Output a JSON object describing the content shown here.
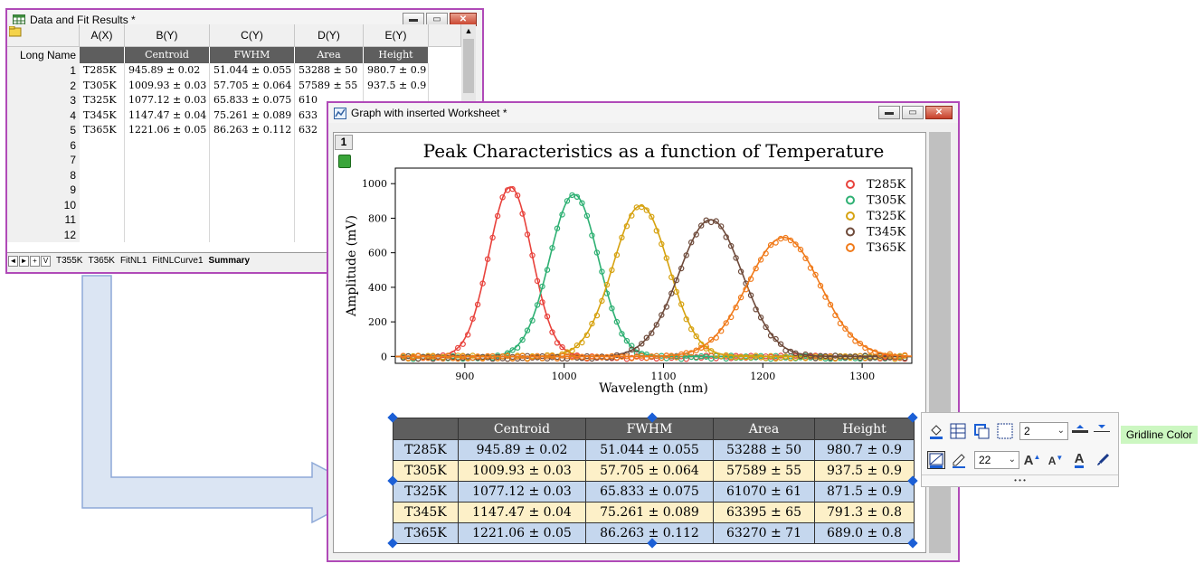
{
  "worksheet": {
    "title": "Data and Fit Results *",
    "columns": [
      "A(X)",
      "B(Y)",
      "C(Y)",
      "D(Y)",
      "E(Y)"
    ],
    "long_name_label": "Long Name",
    "long_names": [
      "",
      "Centroid",
      "FWHM",
      "Area",
      "Height"
    ],
    "row_numbers": [
      "1",
      "2",
      "3",
      "4",
      "5",
      "6",
      "7",
      "8",
      "9",
      "10",
      "11",
      "12"
    ],
    "rows": [
      [
        "T285K",
        "945.89 ± 0.02",
        "51.044 ± 0.055",
        "53288 ± 50",
        "980.7 ± 0.9"
      ],
      [
        "T305K",
        "1009.93 ± 0.03",
        "57.705 ± 0.064",
        "57589 ± 55",
        "937.5 ± 0.9"
      ],
      [
        "T325K",
        "1077.12 ± 0.03",
        "65.833 ± 0.075",
        "610",
        ""
      ],
      [
        "T345K",
        "1147.47 ± 0.04",
        "75.261 ± 0.089",
        "633",
        ""
      ],
      [
        "T365K",
        "1221.06 ± 0.05",
        "86.263 ± 0.112",
        "632",
        ""
      ]
    ],
    "nav_buttons": [
      "◄",
      "►",
      "+",
      "V"
    ],
    "sheet_tabs": [
      "T355K",
      "T365K",
      "FitNL1",
      "FitNLCurve1",
      "Summary"
    ],
    "active_tab": "Summary"
  },
  "graph_window": {
    "title": "Graph with inserted Worksheet *",
    "layer_number": "1"
  },
  "chart_data": {
    "type": "scatter",
    "title": "Peak Characteristics as a function of Temperature",
    "xlabel": "Wavelength (nm)",
    "ylabel": "Amplitude (mV)",
    "xlim": [
      830,
      1350
    ],
    "ylim": [
      -40,
      1090
    ],
    "xticks": [
      "900",
      "1000",
      "1100",
      "1200",
      "1300"
    ],
    "xtick_values": [
      900,
      1000,
      1100,
      1200,
      1300
    ],
    "yticks": [
      "0",
      "200",
      "400",
      "600",
      "800",
      "1000"
    ],
    "ytick_values": [
      0,
      200,
      400,
      600,
      800,
      1000
    ],
    "legend_position": "top-right",
    "series": [
      {
        "name": "T285K",
        "centroid": 945.89,
        "fwhm": 51.044,
        "height": 980.7,
        "color": "#e8423c"
      },
      {
        "name": "T305K",
        "centroid": 1009.93,
        "fwhm": 57.705,
        "height": 937.5,
        "color": "#2eb073"
      },
      {
        "name": "T325K",
        "centroid": 1077.12,
        "fwhm": 65.833,
        "height": 871.5,
        "color": "#d6a20f"
      },
      {
        "name": "T345K",
        "centroid": 1147.47,
        "fwhm": 75.261,
        "height": 791.3,
        "color": "#6e4a3a"
      },
      {
        "name": "T365K",
        "centroid": 1221.06,
        "fwhm": 86.263,
        "height": 689.0,
        "color": "#f07a1a"
      }
    ]
  },
  "inserted_table": {
    "headers": [
      "",
      "Centroid",
      "FWHM",
      "Area",
      "Height"
    ],
    "rows": [
      [
        "T285K",
        "945.89 ± 0.02",
        "51.044 ± 0.055",
        "53288 ± 50",
        "980.7 ± 0.9"
      ],
      [
        "T305K",
        "1009.93 ± 0.03",
        "57.705 ± 0.064",
        "57589 ± 55",
        "937.5 ± 0.9"
      ],
      [
        "T325K",
        "1077.12 ± 0.03",
        "65.833 ± 0.075",
        "61070 ± 61",
        "871.5 ± 0.9"
      ],
      [
        "T345K",
        "1147.47 ± 0.04",
        "75.261 ± 0.089",
        "63395 ± 65",
        "791.3 ± 0.8"
      ],
      [
        "T365K",
        "1221.06 ± 0.05",
        "86.263 ± 0.112",
        "63270 ± 71",
        "689.0 ± 0.8"
      ]
    ]
  },
  "mini_toolbar": {
    "line_width_value": "2",
    "font_size_value": "22",
    "tooltip": "Gridline Color",
    "more": "• • •"
  },
  "colors": {
    "window_border": "#b04ab8",
    "arrow_fill": "#dbe5f3",
    "arrow_stroke": "#8ea9d8"
  }
}
